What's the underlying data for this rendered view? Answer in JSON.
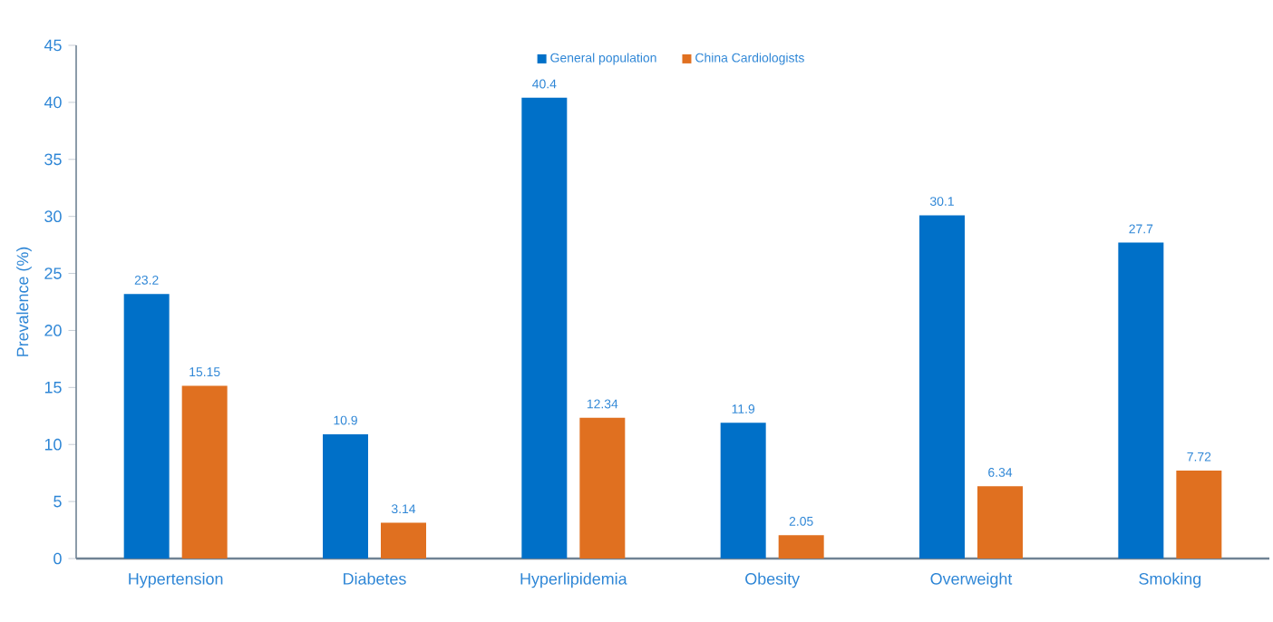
{
  "chart_data": {
    "type": "bar",
    "ylabel": "Prevalence (%)",
    "categories": [
      "Hypertension",
      "Diabetes",
      "Hyperlipidemia",
      "Obesity",
      "Overweight",
      "Smoking"
    ],
    "series": [
      {
        "name": "General population",
        "color": "#0070c8",
        "values": [
          23.2,
          10.9,
          40.4,
          11.9,
          30.1,
          27.7
        ]
      },
      {
        "name": "China Cardiologists",
        "color": "#e07020",
        "values": [
          15.15,
          3.14,
          12.34,
          2.05,
          6.34,
          7.72
        ]
      }
    ],
    "ylim": [
      0,
      45
    ],
    "yticks": [
      0,
      5,
      10,
      15,
      20,
      25,
      30,
      35,
      40,
      45
    ],
    "data_labels": true,
    "legend": "top"
  }
}
